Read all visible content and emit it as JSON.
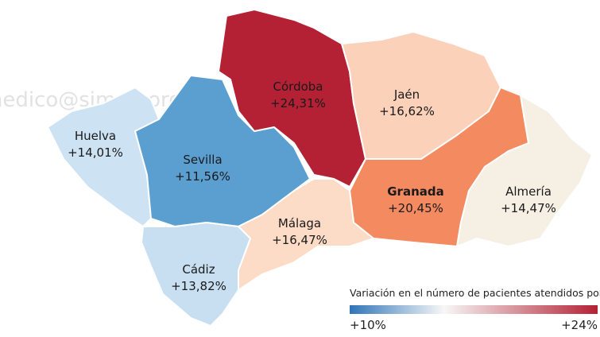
{
  "watermark": "medico@simeg.org",
  "provinces": [
    {
      "name": "Huelva",
      "value": "+14,01%",
      "color": "#cde2f2"
    },
    {
      "name": "Sevilla",
      "value": "+11,56%",
      "color": "#5b9fd1"
    },
    {
      "name": "Córdoba",
      "value": "+24,31%",
      "color": "#b42134"
    },
    {
      "name": "Jaén",
      "value": "+16,62%",
      "color": "#fbd1ba"
    },
    {
      "name": "Granada",
      "value": "+20,45%",
      "color": "#f48a60"
    },
    {
      "name": "Almería",
      "value": "+14,47%",
      "color": "#f5efe4"
    },
    {
      "name": "Málaga",
      "value": "+16,47%",
      "color": "#fcdcc6"
    },
    {
      "name": "Cádiz",
      "value": "+13,82%",
      "color": "#c8dff1"
    }
  ],
  "legend": {
    "title": "Variación en el número de pacientes atendidos por día",
    "min": "+10%",
    "max": "+24%"
  }
}
